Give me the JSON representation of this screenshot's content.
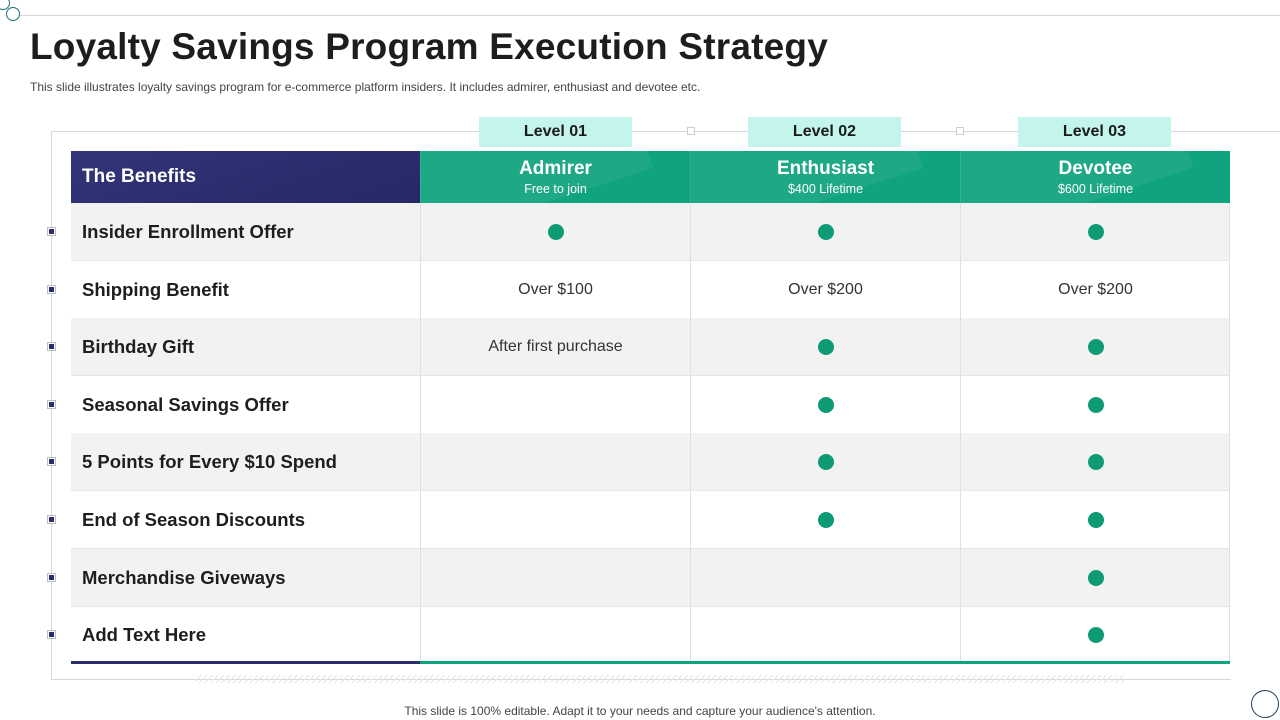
{
  "title": "Loyalty Savings Program Execution Strategy",
  "subtitle": "This slide illustrates loyalty savings program for e-commerce platform insiders. It includes admirer, enthusiast and devotee etc.",
  "levels": [
    {
      "tag": "Level 01",
      "name": "Admirer",
      "price": "Free to join"
    },
    {
      "tag": "Level 02",
      "name": "Enthusiast",
      "price": "$400 Lifetime"
    },
    {
      "tag": "Level 03",
      "name": "Devotee",
      "price": "$600 Lifetime"
    }
  ],
  "benefits_header": "The Benefits",
  "rows": [
    {
      "label": "Insider Enrollment Offer",
      "c1": {
        "dot": true,
        "text": ""
      },
      "c2": {
        "dot": true,
        "text": ""
      },
      "c3": {
        "dot": true,
        "text": ""
      }
    },
    {
      "label": "Shipping Benefit",
      "c1": {
        "dot": false,
        "text": "Over $100"
      },
      "c2": {
        "dot": false,
        "text": "Over $200"
      },
      "c3": {
        "dot": false,
        "text": "Over $200"
      }
    },
    {
      "label": "Birthday Gift",
      "c1": {
        "dot": false,
        "text": "After first purchase"
      },
      "c2": {
        "dot": true,
        "text": ""
      },
      "c3": {
        "dot": true,
        "text": ""
      }
    },
    {
      "label": "Seasonal Savings Offer",
      "c1": {
        "dot": false,
        "text": ""
      },
      "c2": {
        "dot": true,
        "text": ""
      },
      "c3": {
        "dot": true,
        "text": ""
      }
    },
    {
      "label": "5 Points for Every $10 Spend",
      "c1": {
        "dot": false,
        "text": ""
      },
      "c2": {
        "dot": true,
        "text": ""
      },
      "c3": {
        "dot": true,
        "text": ""
      }
    },
    {
      "label": "End of Season Discounts",
      "c1": {
        "dot": false,
        "text": ""
      },
      "c2": {
        "dot": true,
        "text": ""
      },
      "c3": {
        "dot": true,
        "text": ""
      }
    },
    {
      "label": "Merchandise Giveways",
      "c1": {
        "dot": false,
        "text": ""
      },
      "c2": {
        "dot": false,
        "text": ""
      },
      "c3": {
        "dot": true,
        "text": ""
      }
    },
    {
      "label": "Add Text Here",
      "c1": {
        "dot": false,
        "text": ""
      },
      "c2": {
        "dot": false,
        "text": ""
      },
      "c3": {
        "dot": true,
        "text": ""
      }
    }
  ],
  "footer": "This slide is 100% editable. Adapt it to your needs and capture your audience's attention.",
  "colors": {
    "navy": "#2b2d6e",
    "teal": "#10a37f",
    "mint": "#c4f5ec",
    "dot": "#0e9a75"
  }
}
